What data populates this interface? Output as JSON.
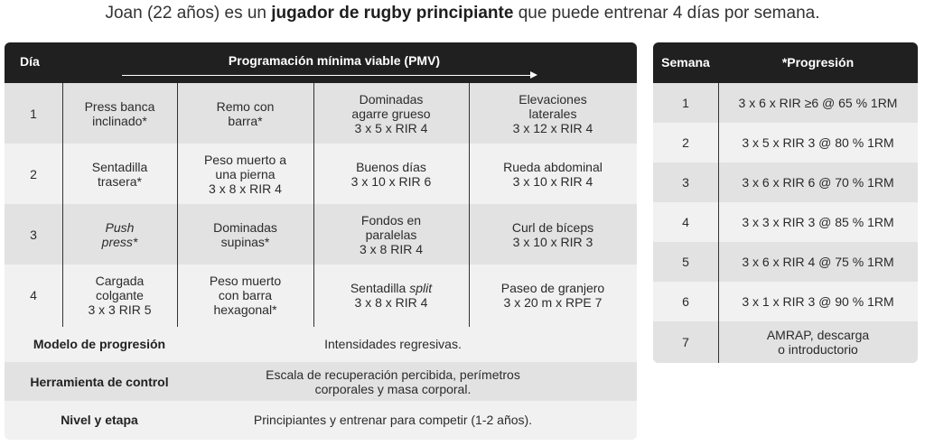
{
  "headline": {
    "prefix": "Joan (22 años) es un ",
    "bold": "jugador de rugby principiante",
    "suffix": " que puede entrenar 4 días por semana."
  },
  "main_table": {
    "header_day": "Día",
    "header_pmv": "Programación mínima viable (PMV)",
    "rows": [
      {
        "day": "1",
        "cells": [
          [
            "Press banca",
            "inclinado*"
          ],
          [
            "Remo con",
            "barra*"
          ],
          [
            "Dominadas",
            "agarre grueso",
            "3 x 5 x RIR 4"
          ],
          [
            "Elevaciones",
            "laterales",
            "3 x 12 x RIR 4"
          ]
        ]
      },
      {
        "day": "2",
        "cells": [
          [
            "Sentadilla",
            "trasera*"
          ],
          [
            "Peso muerto a",
            "una pierna",
            "3 x 8 x RIR 4"
          ],
          [
            "Buenos días",
            "3 x 10 x RIR 6"
          ],
          [
            "Rueda abdominal",
            "3 x 10 x RIR 4"
          ]
        ]
      },
      {
        "day": "3",
        "cells": [
          [
            "Push",
            "press*"
          ],
          [
            "Dominadas",
            "supinas*"
          ],
          [
            "Fondos en",
            "paralelas",
            "3 x 8 RIR 4"
          ],
          [
            "Curl de bíceps",
            "3 x 10 x RIR 3"
          ]
        ]
      },
      {
        "day": "4",
        "cells": [
          [
            "Cargada",
            "colgante",
            "3 x 3 RIR 5"
          ],
          [
            "Peso muerto",
            "con barra",
            "hexagonal*"
          ],
          [
            "Sentadilla split",
            "3 x 8 x RIR 4"
          ],
          [
            "Paseo de granjero",
            "3 x 20 m x RPE 7"
          ]
        ]
      }
    ],
    "info": [
      {
        "label": "Modelo de progresión",
        "value": [
          "Intensidades regresivas."
        ]
      },
      {
        "label": "Herramienta de control",
        "value": [
          "Escala de recuperación percibida, perímetros",
          "corporales y masa corporal."
        ]
      },
      {
        "label": "Nivel y etapa",
        "value": [
          "Principiantes y entrenar para competir (1-2 años)."
        ]
      }
    ]
  },
  "progression_table": {
    "header_week": "Semana",
    "header_prog": "*Progresión",
    "rows": [
      {
        "week": "1",
        "prog": [
          "3 x 6 x RIR ≥6 @ 65 % 1RM"
        ]
      },
      {
        "week": "2",
        "prog": [
          "3 x 5 x RIR 3 @ 80 % 1RM"
        ]
      },
      {
        "week": "3",
        "prog": [
          "3 x 6 x RIR 6 @ 70 % 1RM"
        ]
      },
      {
        "week": "4",
        "prog": [
          "3 x 3 x RIR 3 @ 85 % 1RM"
        ]
      },
      {
        "week": "5",
        "prog": [
          "3 x 6 x RIR 4 @ 75 % 1RM"
        ]
      },
      {
        "week": "6",
        "prog": [
          "3 x 1 x RIR 3 @ 90 % 1RM"
        ]
      },
      {
        "week": "7",
        "prog": [
          "AMRAP, descarga",
          "o introductorio"
        ]
      }
    ]
  },
  "colors": {
    "header_bg": "#202020",
    "row_dark": "#e2e2e2",
    "row_light": "#f1f1f1"
  }
}
